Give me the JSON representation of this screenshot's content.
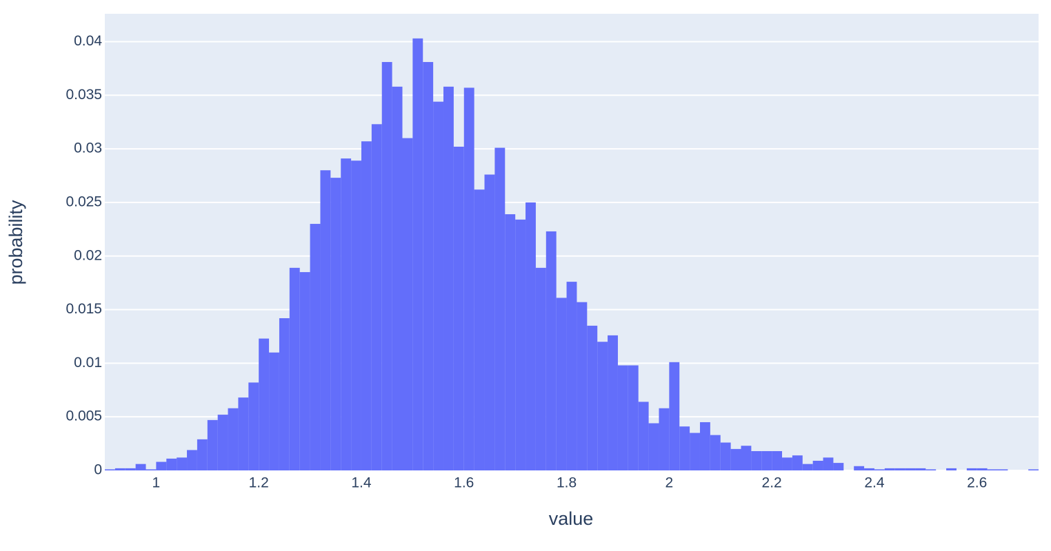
{
  "chart_data": {
    "type": "histogram",
    "xlabel": "value",
    "ylabel": "probability",
    "color": "#636efa",
    "background": "#e5ecf6",
    "grid": true,
    "bins": [
      0.9,
      0.92,
      0.94,
      0.96,
      0.98,
      1.0,
      1.02,
      1.04,
      1.06,
      1.08,
      1.1,
      1.12,
      1.14,
      1.16,
      1.18,
      1.2,
      1.22,
      1.24,
      1.26,
      1.28,
      1.3,
      1.32,
      1.34,
      1.36,
      1.38,
      1.4,
      1.42,
      1.44,
      1.46,
      1.48,
      1.5,
      1.52,
      1.54,
      1.56,
      1.58,
      1.6,
      1.62,
      1.64,
      1.66,
      1.68,
      1.7,
      1.72,
      1.74,
      1.76,
      1.78,
      1.8,
      1.82,
      1.84,
      1.86,
      1.88,
      1.9,
      1.92,
      1.94,
      1.96,
      1.98,
      2.0,
      2.02,
      2.04,
      2.06,
      2.08,
      2.1,
      2.12,
      2.14,
      2.16,
      2.18,
      2.2,
      2.22,
      2.24,
      2.26,
      2.28,
      2.3,
      2.32,
      2.34,
      2.36,
      2.38,
      2.4,
      2.42,
      2.44,
      2.46,
      2.48,
      2.5,
      2.52,
      2.54,
      2.56,
      2.58,
      2.6,
      2.62,
      2.64,
      2.66,
      2.68,
      2.7,
      2.72
    ],
    "values": [
      0.0001,
      0.0002,
      0.0002,
      0.0006,
      0.0001,
      0.0008,
      0.0011,
      0.0012,
      0.0019,
      0.0029,
      0.0047,
      0.0052,
      0.0058,
      0.0068,
      0.0082,
      0.0123,
      0.011,
      0.0142,
      0.0189,
      0.0185,
      0.023,
      0.028,
      0.0273,
      0.0291,
      0.0289,
      0.0307,
      0.0323,
      0.0381,
      0.0358,
      0.031,
      0.0403,
      0.0381,
      0.0344,
      0.0358,
      0.0302,
      0.0357,
      0.0262,
      0.0276,
      0.0301,
      0.0239,
      0.0234,
      0.025,
      0.0189,
      0.0223,
      0.0161,
      0.0176,
      0.0157,
      0.0135,
      0.012,
      0.0126,
      0.0098,
      0.0098,
      0.0064,
      0.0044,
      0.0058,
      0.0101,
      0.0041,
      0.0035,
      0.0045,
      0.0033,
      0.0026,
      0.002,
      0.0023,
      0.0018,
      0.0018,
      0.0018,
      0.0012,
      0.0014,
      0.0006,
      0.0009,
      0.0012,
      0.0007,
      0,
      0.0004,
      0.0002,
      0.0001,
      0.0002,
      0.0002,
      0.0002,
      0.0002,
      0.0001,
      0,
      0.0002,
      0,
      0.0002,
      0.0002,
      0.0001,
      0.0001,
      0,
      0,
      0.0001
    ],
    "xlim": [
      0.9,
      2.72
    ],
    "ylim": [
      0,
      0.0426
    ],
    "xticks": [
      1,
      1.2,
      1.4,
      1.6,
      1.8,
      2,
      2.2,
      2.4,
      2.6
    ],
    "yticks": [
      0,
      0.005,
      0.01,
      0.015,
      0.02,
      0.025,
      0.03,
      0.035,
      0.04
    ]
  }
}
